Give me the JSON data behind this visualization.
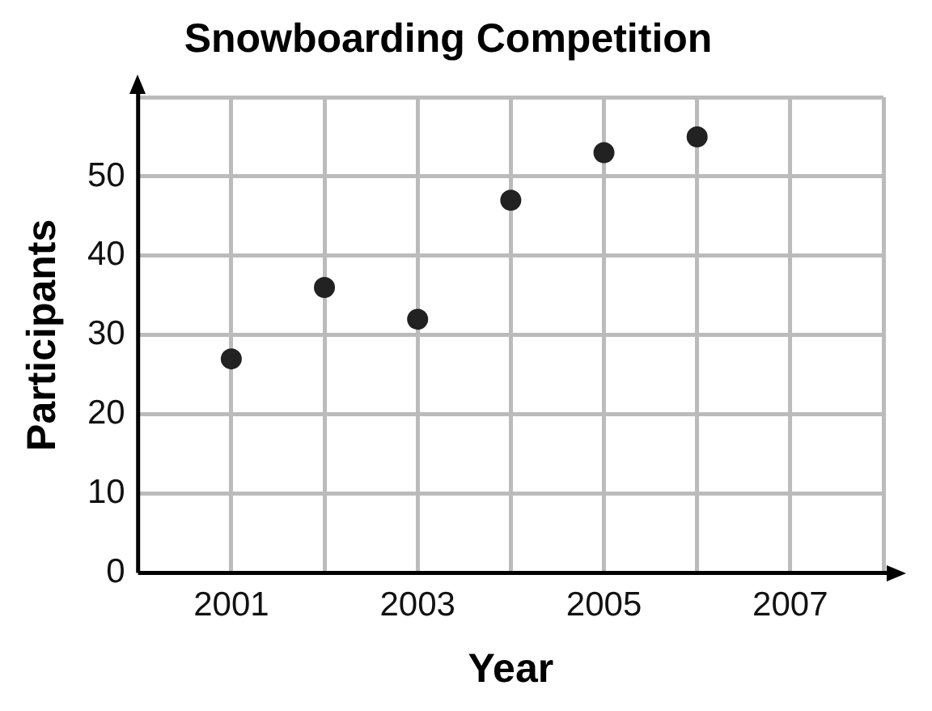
{
  "chart_data": {
    "type": "scatter",
    "title": "Snowboarding Competition",
    "xlabel": "Year",
    "ylabel": "Participants",
    "x": [
      2001,
      2002,
      2003,
      2004,
      2005,
      2006
    ],
    "values": [
      27,
      36,
      32,
      47,
      53,
      55
    ],
    "color": "#222222",
    "marker": "circle",
    "xlim": [
      2000,
      2008
    ],
    "xticks": [
      2001,
      {
        "value": 2002,
        "label": null
      },
      2003,
      {
        "value": 2004,
        "label": null
      },
      2005,
      {
        "value": 2006,
        "label": null
      },
      2007,
      {
        "value": 2008,
        "label": null
      }
    ],
    "ylim": [
      0,
      60
    ],
    "yticks": [
      0,
      10,
      20,
      30,
      40,
      50,
      {
        "value": 60,
        "label": null
      }
    ],
    "grid": true,
    "legend": false
  }
}
